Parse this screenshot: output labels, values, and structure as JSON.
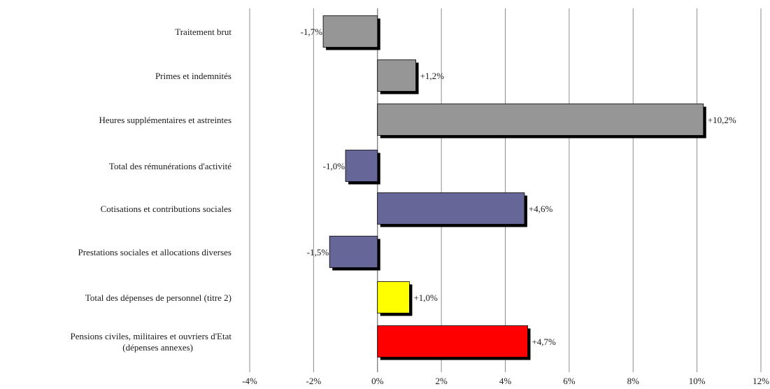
{
  "chart_data": {
    "type": "bar",
    "orientation": "horizontal",
    "categories": [
      [
        "Traitement brut"
      ],
      [
        "Primes et indemnités"
      ],
      [
        "Heures supplémentaires et astreintes"
      ],
      [
        "Total des rémunérations d'activité"
      ],
      [
        "Cotisations et contributions sociales"
      ],
      [
        "Prestations sociales et allocations diverses"
      ],
      [
        "Total des dépenses de personnel (titre 2)"
      ],
      [
        "Pensions civiles, militaires et ouvriers d'Etat",
        "(dépenses annexes)"
      ]
    ],
    "values": [
      -1.7,
      1.2,
      10.2,
      -1.0,
      4.6,
      -1.5,
      1.0,
      4.7
    ],
    "data_labels": [
      "-1,7%",
      "+1,2%",
      "+10,2%",
      "-1,0%",
      "+4,6%",
      "-1,5%",
      "+1,0%",
      "+4,7%"
    ],
    "bar_colors": [
      "#969696",
      "#969696",
      "#969696",
      "#666699",
      "#666699",
      "#666699",
      "#ffff00",
      "#ff0000"
    ],
    "shadow_color": "#000000",
    "gridline_color": "#8c8c8c",
    "xlim": [
      -4,
      12
    ],
    "xticks": [
      -4,
      -2,
      0,
      2,
      4,
      6,
      8,
      10,
      12
    ],
    "xtick_labels": [
      "-4%",
      "-2%",
      "0%",
      "2%",
      "4%",
      "6%",
      "8%",
      "10%",
      "12%"
    ],
    "grid": "vertical",
    "legend": "none"
  }
}
